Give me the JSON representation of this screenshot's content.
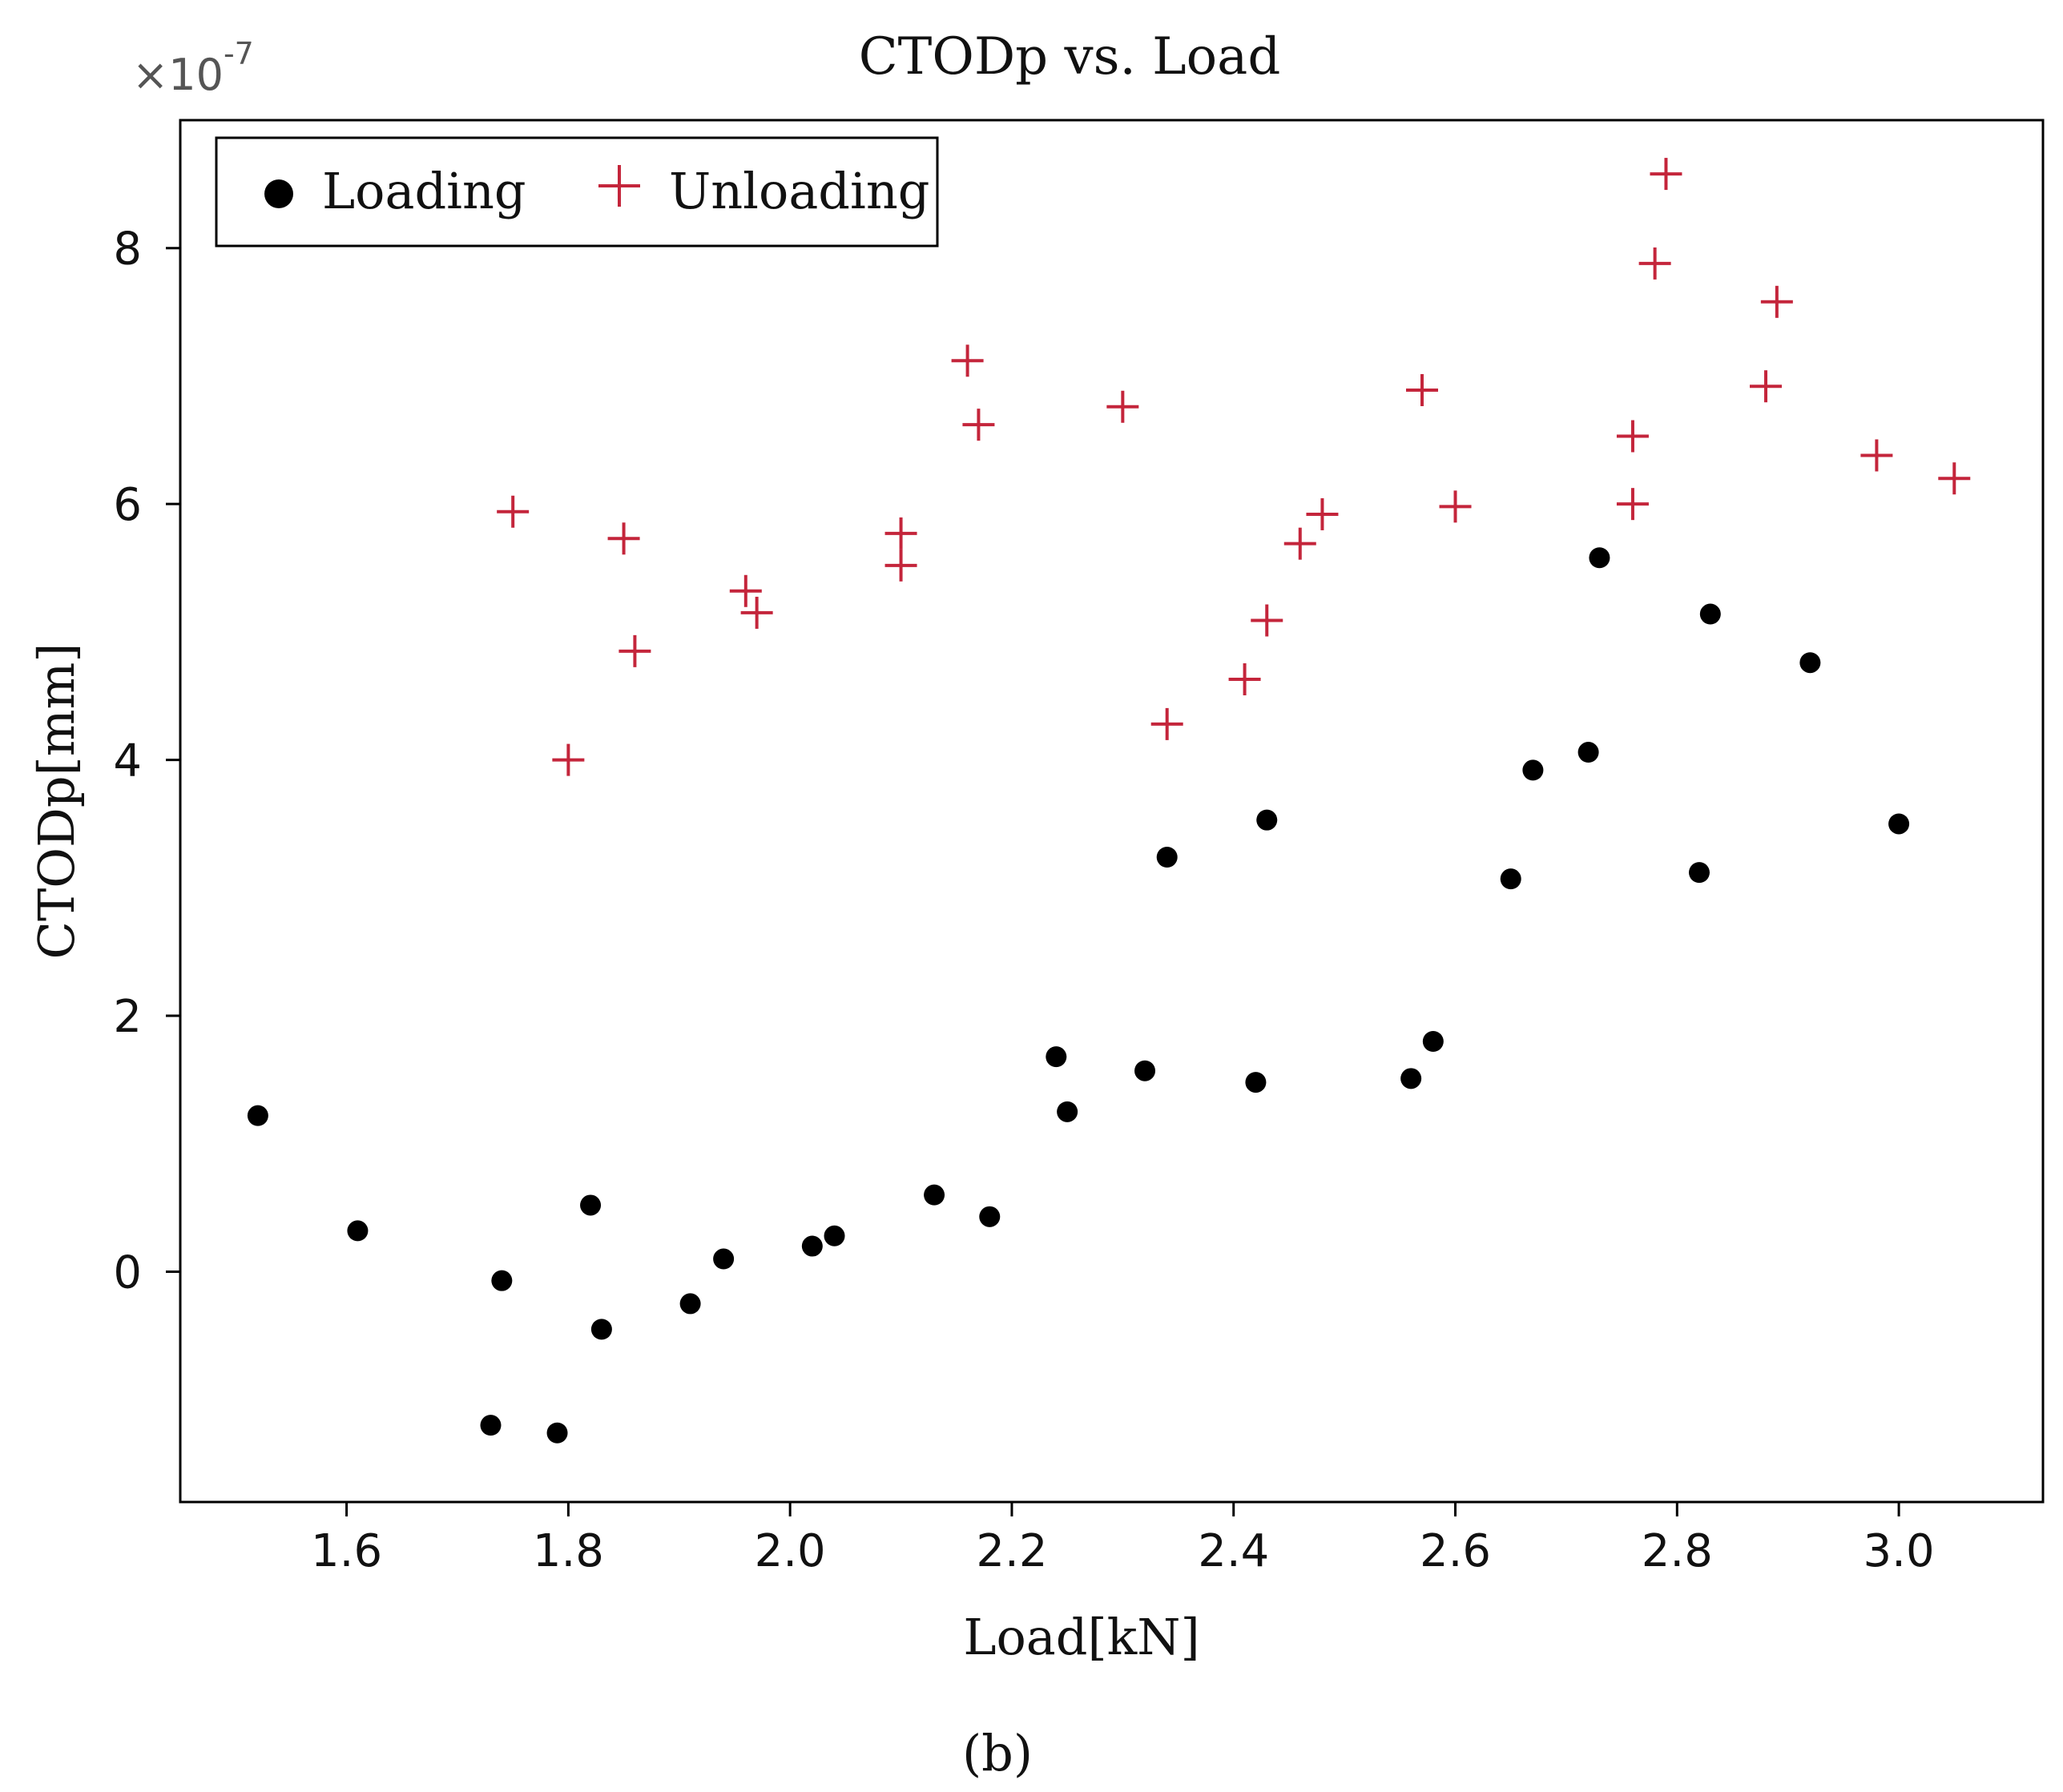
{
  "chart_data": {
    "type": "scatter",
    "title": "CTODp vs. Load",
    "xlabel": "Load[kN]",
    "ylabel": "CTODp[mm]",
    "y_multiplier": {
      "base": "×10",
      "exponent": "-7"
    },
    "caption": "(b)",
    "xlim": [
      1.45,
      3.13
    ],
    "ylim": [
      -1.8,
      9.0
    ],
    "x_ticks": [
      1.6,
      1.8,
      2.0,
      2.2,
      2.4,
      2.6,
      2.8,
      3.0
    ],
    "x_tick_labels": [
      "1.6",
      "1.8",
      "2.0",
      "2.2",
      "2.4",
      "2.6",
      "2.8",
      "3.0"
    ],
    "y_ticks": [
      0,
      2,
      4,
      6,
      8
    ],
    "y_tick_labels": [
      "0",
      "2",
      "4",
      "6",
      "8"
    ],
    "grid": false,
    "legend_position": "top-left",
    "series": [
      {
        "name": "Loading",
        "marker": "dot",
        "color": "#000000",
        "points": [
          [
            1.52,
            1.22
          ],
          [
            1.61,
            0.32
          ],
          [
            1.73,
            -1.2
          ],
          [
            1.74,
            -0.07
          ],
          [
            1.79,
            -1.26
          ],
          [
            1.82,
            0.52
          ],
          [
            1.83,
            -0.45
          ],
          [
            1.91,
            -0.25
          ],
          [
            1.94,
            0.1
          ],
          [
            2.02,
            0.2
          ],
          [
            2.04,
            0.28
          ],
          [
            2.13,
            0.6
          ],
          [
            2.18,
            0.43
          ],
          [
            2.24,
            1.68
          ],
          [
            2.25,
            1.25
          ],
          [
            2.32,
            1.57
          ],
          [
            2.34,
            3.24
          ],
          [
            2.42,
            1.48
          ],
          [
            2.43,
            3.53
          ],
          [
            2.56,
            1.51
          ],
          [
            2.58,
            1.8
          ],
          [
            2.65,
            3.07
          ],
          [
            2.67,
            3.92
          ],
          [
            2.72,
            4.06
          ],
          [
            2.73,
            5.58
          ],
          [
            2.82,
            3.12
          ],
          [
            2.83,
            5.14
          ],
          [
            2.92,
            4.76
          ],
          [
            3.0,
            3.5
          ]
        ]
      },
      {
        "name": "Unloading",
        "marker": "plus",
        "color": "#c4253b",
        "points": [
          [
            1.75,
            5.94
          ],
          [
            1.8,
            4.0
          ],
          [
            1.85,
            5.73
          ],
          [
            1.86,
            4.85
          ],
          [
            1.96,
            5.32
          ],
          [
            1.97,
            5.15
          ],
          [
            2.1,
            5.77
          ],
          [
            2.1,
            5.52
          ],
          [
            2.16,
            7.12
          ],
          [
            2.17,
            6.62
          ],
          [
            2.3,
            6.76
          ],
          [
            2.34,
            4.28
          ],
          [
            2.41,
            4.63
          ],
          [
            2.43,
            5.09
          ],
          [
            2.46,
            5.69
          ],
          [
            2.48,
            5.92
          ],
          [
            2.57,
            6.89
          ],
          [
            2.6,
            5.98
          ],
          [
            2.76,
            6.0
          ],
          [
            2.76,
            6.53
          ],
          [
            2.78,
            7.88
          ],
          [
            2.79,
            8.58
          ],
          [
            2.88,
            6.92
          ],
          [
            2.89,
            7.58
          ],
          [
            2.98,
            6.38
          ],
          [
            3.05,
            6.2
          ]
        ]
      }
    ]
  }
}
